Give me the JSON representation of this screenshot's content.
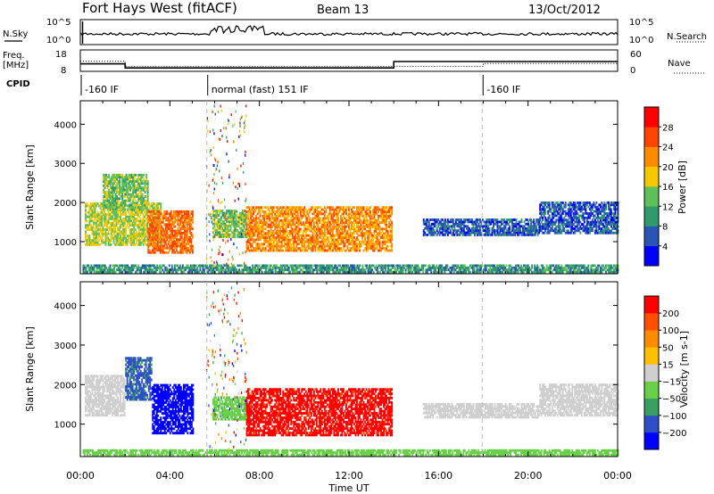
{
  "header": {
    "site": "Fort Hays West (fitACF)",
    "beam": "Beam 13",
    "date": "13/Oct/2012"
  },
  "colors": {
    "power": [
      "#0000ff",
      "#2a55b4",
      "#2f9a6e",
      "#5fc05a",
      "#f5c800",
      "#ff8c00",
      "#ff4500",
      "#ff0000"
    ],
    "velocity": [
      "#0000ff",
      "#2f4fc8",
      "#3aa060",
      "#6ad04a",
      "#cfcfcf",
      "#ffc000",
      "#ff8c00",
      "#ff5000",
      "#ff0000"
    ]
  },
  "chart_data": [
    {
      "type": "line",
      "name": "nsky-panel",
      "left_label": "N.Sky",
      "right_label": "N.Search",
      "left_ticks": [
        "10^5",
        "10^0"
      ],
      "right_ticks": [
        "10^5",
        "10^0"
      ]
    },
    {
      "type": "line",
      "name": "freq-panel",
      "left_label": "Freq.",
      "left_unit": "[MHz]",
      "right_label": "Nave",
      "left_ticks": [
        18,
        8
      ],
      "right_ticks": [
        60,
        0
      ],
      "freq_steps": [
        [
          0,
          11.5
        ],
        [
          2.0,
          9.6
        ],
        [
          14.0,
          12.6
        ],
        [
          24,
          12.6
        ]
      ],
      "nave_steps": [
        [
          0,
          28
        ],
        [
          2.0,
          14
        ],
        [
          14.0,
          14
        ],
        [
          18.0,
          22
        ],
        [
          24,
          22
        ]
      ]
    },
    {
      "type": "table",
      "name": "cpid-strip",
      "label": "CPID",
      "segments": [
        {
          "start_h": 0.0,
          "text": "-160 IF"
        },
        {
          "start_h": 5.65,
          "text": "normal (fast) 151 IF"
        },
        {
          "start_h": 17.95,
          "text": "-160 IF"
        }
      ]
    },
    {
      "type": "heatmap",
      "name": "power-panel",
      "ylabel": "Slant Range [km]",
      "yticks": [
        1000,
        2000,
        3000,
        4000
      ],
      "ylim": [
        180,
        4600
      ],
      "xlim": [
        0,
        24
      ],
      "colorbar": {
        "label": "Power [dB]",
        "ticks": [
          4,
          8,
          12,
          16,
          20,
          24,
          28
        ],
        "range": [
          0,
          32
        ]
      },
      "regions": [
        {
          "t0": 0.2,
          "t1": 3.6,
          "r0": 900,
          "r1": 2000,
          "v": 16
        },
        {
          "t0": 1.0,
          "t1": 3.0,
          "r0": 1800,
          "r1": 2700,
          "v": 14
        },
        {
          "t0": 3.0,
          "t1": 5.0,
          "r0": 700,
          "r1": 1800,
          "v": 24
        },
        {
          "t0": 5.9,
          "t1": 7.4,
          "r0": 1100,
          "r1": 1800,
          "v": 14
        },
        {
          "t0": 7.4,
          "t1": 13.9,
          "r0": 750,
          "r1": 1900,
          "v": 22
        },
        {
          "t0": 15.3,
          "t1": 20.5,
          "r0": 1150,
          "r1": 1550,
          "v": 6
        },
        {
          "t0": 20.5,
          "t1": 24.0,
          "r0": 1200,
          "r1": 2000,
          "v": 6
        },
        {
          "t0": 0.1,
          "t1": 24.0,
          "r0": 200,
          "r1": 380,
          "v": 10
        }
      ]
    },
    {
      "type": "heatmap",
      "name": "velocity-panel",
      "ylabel": "Slant Range [km]",
      "yticks": [
        1000,
        2000,
        3000,
        4000
      ],
      "ylim": [
        180,
        4600
      ],
      "xlim": [
        0,
        24
      ],
      "xticks": [
        "00:00",
        "04:00",
        "08:00",
        "12:00",
        "16:00",
        "20:00",
        "00:00"
      ],
      "xlabel": "Time UT",
      "colorbar": {
        "label": "Velocity [m s-1]",
        "ticks": [
          200,
          100,
          50,
          15,
          -15,
          -50,
          -100,
          -200
        ],
        "range": [
          -250,
          250
        ]
      },
      "regions": [
        {
          "t0": 0.2,
          "t1": 2.0,
          "r0": 1200,
          "r1": 2200,
          "v": 0
        },
        {
          "t0": 2.0,
          "t1": 3.2,
          "r0": 1600,
          "r1": 2700,
          "v": -150
        },
        {
          "t0": 3.2,
          "t1": 5.0,
          "r0": 750,
          "r1": 2000,
          "v": -220
        },
        {
          "t0": 5.9,
          "t1": 7.4,
          "r0": 1100,
          "r1": 1700,
          "v": -70
        },
        {
          "t0": 7.4,
          "t1": 13.9,
          "r0": 700,
          "r1": 1900,
          "v": 210
        },
        {
          "t0": 15.3,
          "t1": 20.5,
          "r0": 1150,
          "r1": 1500,
          "v": 0
        },
        {
          "t0": 20.5,
          "t1": 24.0,
          "r0": 1200,
          "r1": 2000,
          "v": 0
        },
        {
          "t0": 0.1,
          "t1": 24.0,
          "r0": 200,
          "r1": 360,
          "v": -60
        }
      ]
    }
  ]
}
